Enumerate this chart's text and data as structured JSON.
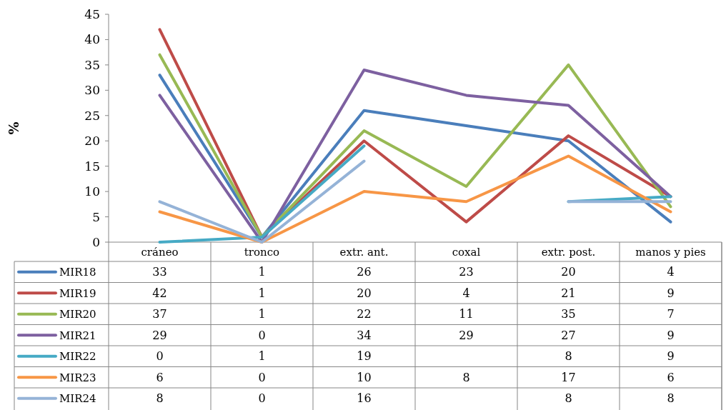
{
  "chart_data": {
    "type": "line",
    "ylabel": "%",
    "categories": [
      "cráneo",
      "tronco",
      "extr. ant.",
      "coxal",
      "extr. post.",
      "manos y pies"
    ],
    "ylim": [
      0,
      45
    ],
    "yticks": [
      0,
      5,
      10,
      15,
      20,
      25,
      30,
      35,
      40,
      45
    ],
    "grid": false,
    "legend": "bottom",
    "data_labels": true,
    "line_style": "solid",
    "series": [
      {
        "name": "MIR18",
        "color": "#4a7ebb",
        "values": [
          33,
          1,
          26,
          23,
          20,
          4
        ]
      },
      {
        "name": "MIR19",
        "color": "#be4b48",
        "values": [
          42,
          1,
          20,
          4,
          21,
          9
        ]
      },
      {
        "name": "MIR20",
        "color": "#98b954",
        "values": [
          37,
          1,
          22,
          11,
          35,
          7
        ]
      },
      {
        "name": "MIR21",
        "color": "#7d60a0",
        "values": [
          29,
          0,
          34,
          29,
          27,
          9
        ]
      },
      {
        "name": "MIR22",
        "color": "#46aac5",
        "values": [
          0,
          1,
          19,
          null,
          8,
          9
        ]
      },
      {
        "name": "MIR23",
        "color": "#f79646",
        "values": [
          6,
          0,
          10,
          8,
          17,
          6
        ]
      },
      {
        "name": "MIR24",
        "color": "#95b3d7",
        "values": [
          8,
          0,
          16,
          null,
          8,
          8
        ]
      }
    ]
  }
}
